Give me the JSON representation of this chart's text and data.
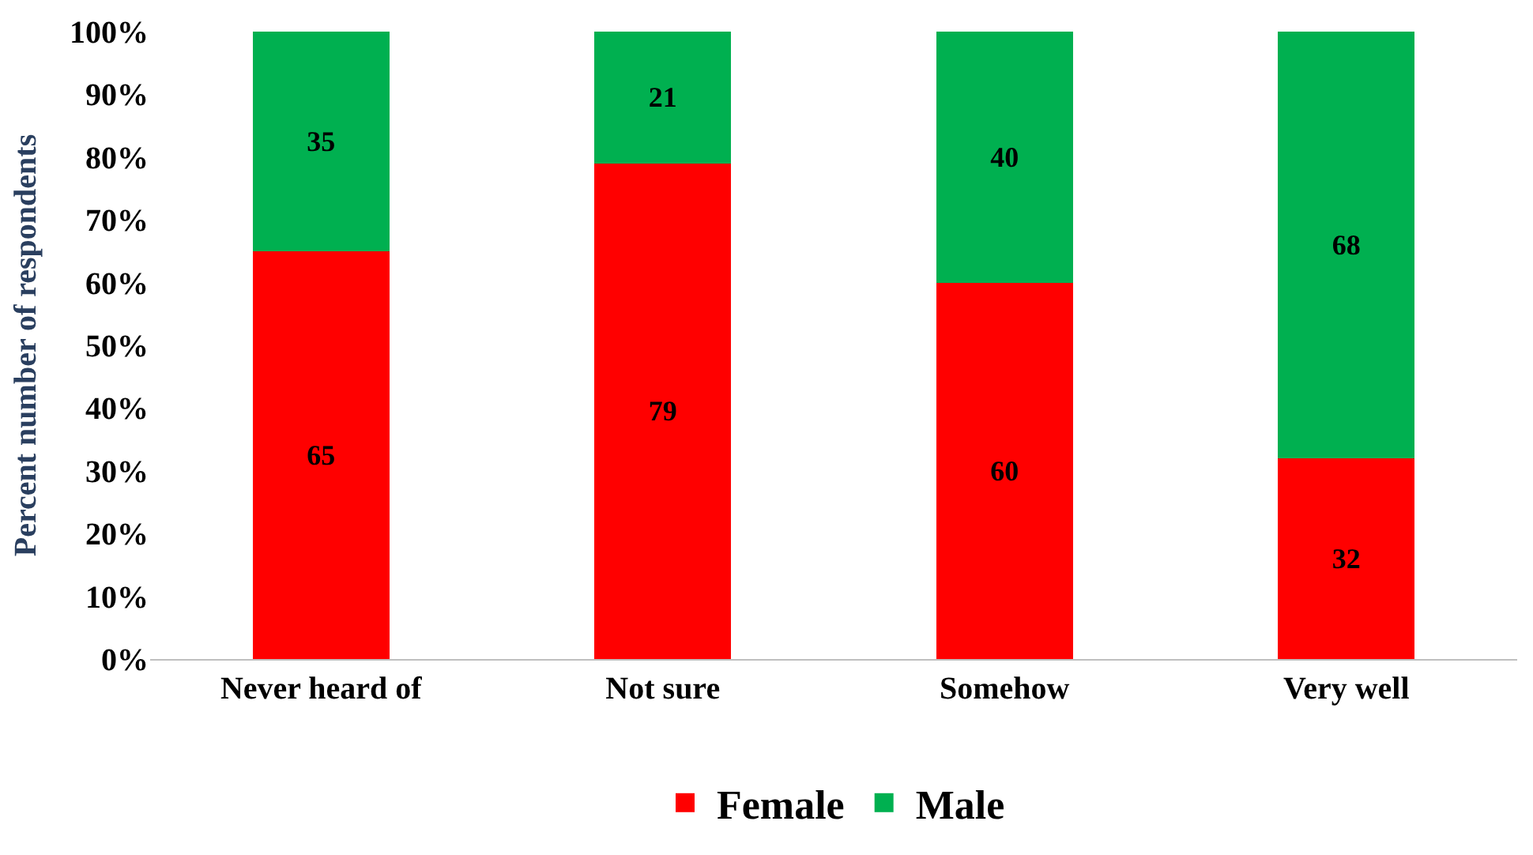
{
  "chart_data": {
    "type": "bar",
    "stacked": true,
    "ylabel": "Percent number of respondents",
    "categories": [
      "Never heard of",
      "Not sure",
      "Somehow",
      "Very well"
    ],
    "series": [
      {
        "name": "Female",
        "color": "#ff0000",
        "values": [
          65,
          79,
          60,
          32
        ]
      },
      {
        "name": "Male",
        "color": "#00b050",
        "values": [
          35,
          21,
          40,
          68
        ]
      }
    ],
    "ylim": [
      0,
      100
    ],
    "yticks": [
      {
        "value": 0,
        "label": "0%"
      },
      {
        "value": 10,
        "label": "10%"
      },
      {
        "value": 20,
        "label": "20%"
      },
      {
        "value": 30,
        "label": "30%"
      },
      {
        "value": 40,
        "label": "40%"
      },
      {
        "value": 50,
        "label": "50%"
      },
      {
        "value": 60,
        "label": "60%"
      },
      {
        "value": 70,
        "label": "70%"
      },
      {
        "value": 80,
        "label": "80%"
      },
      {
        "value": 90,
        "label": "90%"
      },
      {
        "value": 100,
        "label": "100%"
      }
    ],
    "data_labels": true,
    "grid": false,
    "legend": "bottom"
  }
}
